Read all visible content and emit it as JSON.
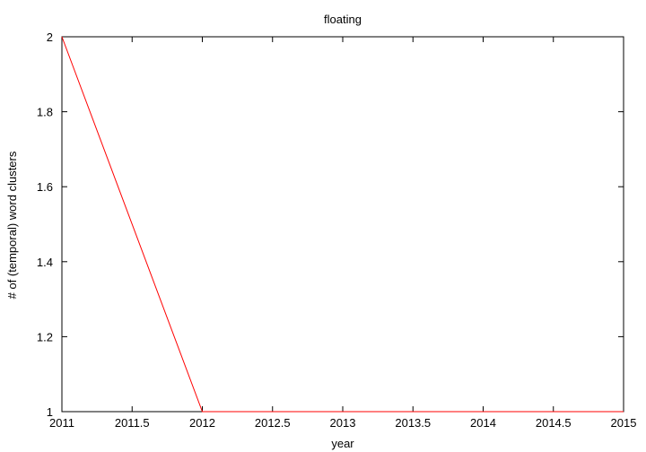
{
  "chart_data": {
    "type": "line",
    "title": "floating",
    "xlabel": "year",
    "ylabel": "# of (temporal) word clusters",
    "xlim": [
      2011,
      2015
    ],
    "ylim": [
      1,
      2
    ],
    "xticks": [
      2011,
      2011.5,
      2012,
      2012.5,
      2013,
      2013.5,
      2014,
      2014.5,
      2015
    ],
    "xtick_labels": [
      "2011",
      "2011.5",
      "2012",
      "2012.5",
      "2013",
      "2013.5",
      "2014",
      "2014.5",
      "2015"
    ],
    "yticks": [
      1,
      1.2,
      1.4,
      1.6,
      1.8,
      2
    ],
    "ytick_labels": [
      "1",
      "1.2",
      "1.4",
      "1.6",
      "1.8",
      "2"
    ],
    "grid": false,
    "legend": "none",
    "series": [
      {
        "color": "#ff0000",
        "x": [
          2011,
          2012,
          2013,
          2014,
          2015
        ],
        "y": [
          2,
          1,
          1,
          1,
          1
        ]
      }
    ]
  }
}
